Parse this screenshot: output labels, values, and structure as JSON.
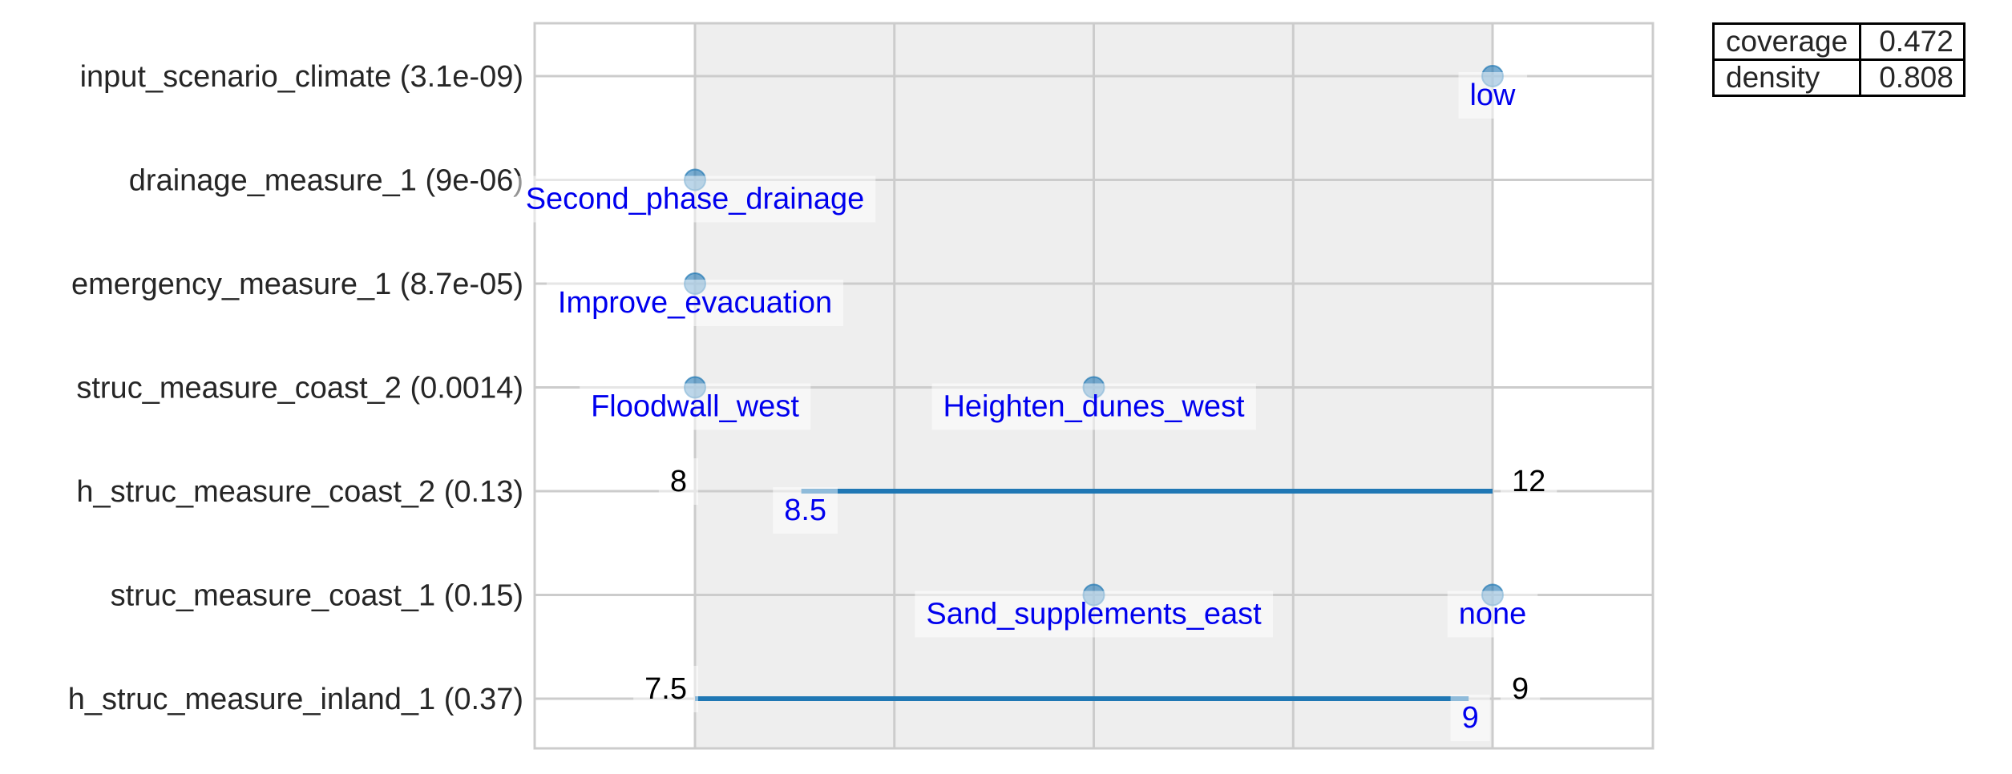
{
  "chart_data": {
    "type": "scatter",
    "title": "",
    "xlabel": "",
    "ylabel": "",
    "x_ticks_visible": false,
    "grid": true,
    "accent_color": "#1f77b4",
    "label_color": "#0000ee",
    "rows": [
      {
        "label": "input_scenario_climate (3.1e-09)",
        "kind": "categorical",
        "points": [
          {
            "x": 1.0,
            "text": "low"
          }
        ]
      },
      {
        "label": "drainage_measure_1 (9e-06)",
        "kind": "categorical",
        "points": [
          {
            "x": 0.0,
            "text": "Second_phase_drainage"
          }
        ]
      },
      {
        "label": "emergency_measure_1 (8.7e-05)",
        "kind": "categorical",
        "points": [
          {
            "x": 0.0,
            "text": "Improve_evacuation"
          }
        ]
      },
      {
        "label": "struc_measure_coast_2 (0.0014)",
        "kind": "categorical",
        "points": [
          {
            "x": 0.0,
            "text": "Floodwall_west"
          },
          {
            "x": 0.5,
            "text": "Heighten_dunes_west"
          }
        ]
      },
      {
        "label": "h_struc_measure_coast_2 (0.13)",
        "kind": "range",
        "min": "8",
        "max": "12",
        "box_low": 8.5,
        "box_high": 12,
        "box_low_text": "8.5",
        "box_high_text": "",
        "norm_low": 0.1333,
        "norm_high": 1.0
      },
      {
        "label": "struc_measure_coast_1 (0.15)",
        "kind": "categorical",
        "points": [
          {
            "x": 0.5,
            "text": "Sand_supplements_east"
          },
          {
            "x": 1.0,
            "text": "none"
          }
        ]
      },
      {
        "label": "h_struc_measure_inland_1 (0.37)",
        "kind": "range",
        "min": "7.5",
        "max": "9",
        "box_low": 7.5,
        "box_high": 9,
        "box_low_text": "",
        "box_high_text": "9",
        "norm_low": 0.0,
        "norm_high": 0.97
      }
    ]
  },
  "stats": [
    {
      "label": "coverage",
      "value": "0.472"
    },
    {
      "label": "density",
      "value": "0.808"
    }
  ]
}
